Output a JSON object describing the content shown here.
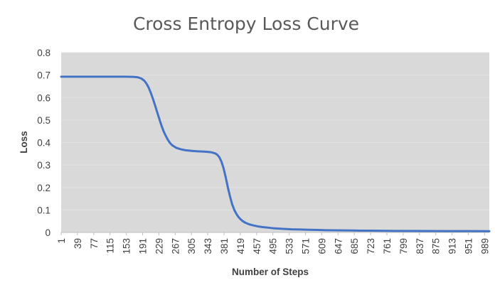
{
  "chart_data": {
    "type": "line",
    "title": "Cross Entropy Loss Curve",
    "xlabel": "Number of Steps",
    "ylabel": "Loss",
    "ylim": [
      0,
      0.8
    ],
    "xlim": [
      1,
      1000
    ],
    "yticks": [
      "0",
      "0.1",
      "0.2",
      "0.3",
      "0.4",
      "0.5",
      "0.6",
      "0.7",
      "0.8"
    ],
    "xticks": [
      "1",
      "39",
      "77",
      "115",
      "153",
      "191",
      "229",
      "267",
      "305",
      "343",
      "381",
      "419",
      "457",
      "495",
      "533",
      "571",
      "609",
      "647",
      "685",
      "723",
      "761",
      "799",
      "837",
      "875",
      "913",
      "951",
      "989"
    ],
    "legend": "none",
    "plot_background": "#d9d9d9",
    "line_color": "#4472c4",
    "series": [
      {
        "name": "Loss",
        "x": [
          1,
          50,
          100,
          150,
          170,
          180,
          188,
          195,
          200,
          205,
          210,
          215,
          220,
          225,
          230,
          235,
          240,
          245,
          250,
          255,
          260,
          270,
          280,
          290,
          300,
          310,
          320,
          330,
          340,
          350,
          360,
          365,
          370,
          375,
          380,
          385,
          390,
          395,
          400,
          405,
          410,
          415,
          420,
          425,
          430,
          440,
          450,
          460,
          470,
          480,
          490,
          500,
          520,
          540,
          560,
          580,
          600,
          620,
          640,
          660,
          680,
          700,
          720,
          740,
          760,
          780,
          800,
          850,
          900,
          950,
          1000
        ],
        "values": [
          0.693,
          0.693,
          0.693,
          0.693,
          0.692,
          0.69,
          0.685,
          0.675,
          0.662,
          0.645,
          0.622,
          0.595,
          0.566,
          0.535,
          0.505,
          0.476,
          0.45,
          0.43,
          0.412,
          0.398,
          0.388,
          0.376,
          0.37,
          0.366,
          0.364,
          0.362,
          0.361,
          0.36,
          0.359,
          0.357,
          0.352,
          0.346,
          0.335,
          0.315,
          0.285,
          0.245,
          0.2,
          0.16,
          0.125,
          0.1,
          0.082,
          0.068,
          0.058,
          0.05,
          0.044,
          0.036,
          0.031,
          0.027,
          0.024,
          0.022,
          0.02,
          0.018,
          0.016,
          0.014,
          0.013,
          0.012,
          0.011,
          0.01,
          0.0095,
          0.009,
          0.0085,
          0.008,
          0.0078,
          0.0075,
          0.007,
          0.0068,
          0.0066,
          0.0062,
          0.006,
          0.0058,
          0.0056
        ]
      }
    ]
  }
}
